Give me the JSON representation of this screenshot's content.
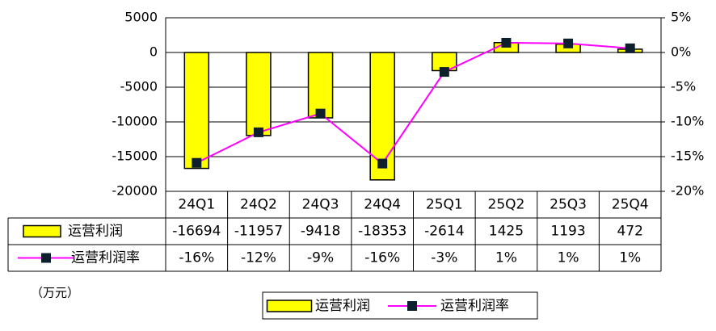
{
  "chart_data": {
    "type": "bar",
    "unit": "（万元）",
    "categories": [
      "24Q1",
      "24Q2",
      "24Q3",
      "24Q4",
      "25Q1",
      "25Q2",
      "25Q3",
      "25Q4"
    ],
    "series": [
      {
        "name": "运营利润",
        "type": "bar",
        "color": "#ffff00",
        "values": [
          -16694,
          -11957,
          -9418,
          -18353,
          -2614,
          1425,
          1193,
          472
        ]
      },
      {
        "name": "运营利润率",
        "type": "line",
        "axis": "y2",
        "color": "#ff00ff",
        "marker_color": "#0d1f2d",
        "values": [
          -15.9,
          -11.5,
          -8.8,
          -16.0,
          -2.8,
          1.4,
          1.3,
          0.6
        ],
        "value_labels": [
          "-16%",
          "-12%",
          "-9%",
          "-16%",
          "-3%",
          "1%",
          "1%",
          "1%"
        ]
      }
    ],
    "ylim": [
      -20000,
      5000
    ],
    "yticks": [
      5000,
      0,
      -5000,
      -10000,
      -15000,
      -20000
    ],
    "y2lim": [
      -20,
      5
    ],
    "y2ticks": [
      {
        "value": 5,
        "label": "5%"
      },
      {
        "value": 0,
        "label": "0%"
      },
      {
        "value": -5,
        "label": "-5%"
      },
      {
        "value": -10,
        "label": "-10%"
      },
      {
        "value": -15,
        "label": "-15%"
      },
      {
        "value": -20,
        "label": "-20%"
      }
    ],
    "grid": true
  }
}
